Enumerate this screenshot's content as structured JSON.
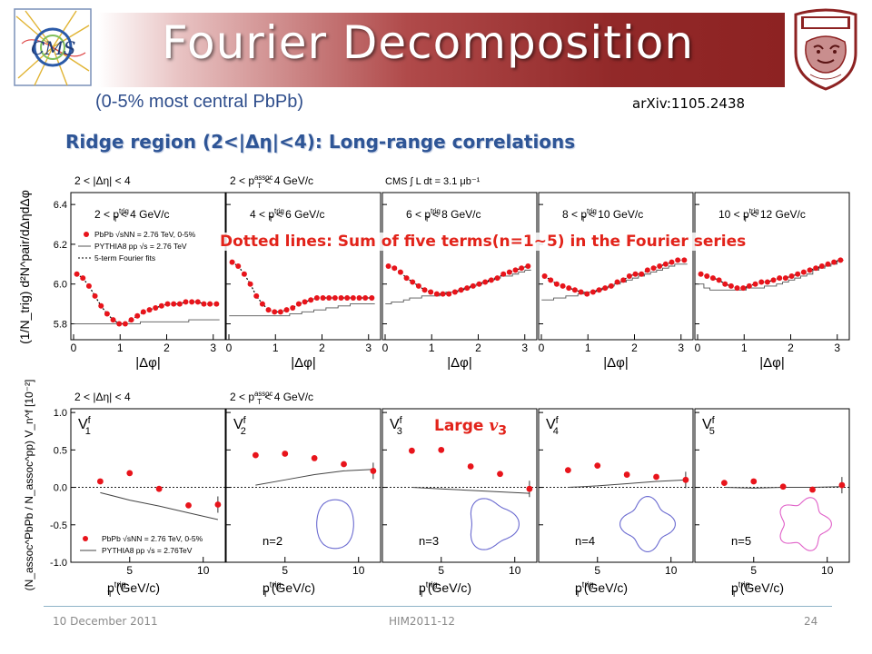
{
  "header": {
    "title": "Fourier Decomposition",
    "subtitle": "(0-5% most central PbPb)",
    "arxiv": "arXiv:1105.2438",
    "ridge_heading": "Ridge region (2<|Δη|<4): Long-range correlations",
    "logos": [
      "cms-logo",
      "korea-university-logo"
    ]
  },
  "annotations": {
    "dotted_note": "Dotted lines: Sum of five terms(n=1~5) in the Fourier series",
    "large_v3_prefix": "Large ",
    "large_v3_symbol": "v",
    "large_v3_sub": "3"
  },
  "footer": {
    "date": "10 December 2011",
    "conference": "HIM2011-12",
    "page": "24"
  },
  "colors": {
    "banner_dark": "#8d2222",
    "subtitle_blue": "#2f4e8c",
    "heading_blue": "#2e5596",
    "highlight_red": "#e2231a",
    "marker_red": "#e8141b"
  },
  "chart_data": [
    {
      "type": "line",
      "id": "top-row",
      "header_labels": [
        "2 < |Δη| < 4",
        "2 < p_T^assoc < 4 GeV/c",
        "CMS ∫ L dt = 3.1 μb⁻¹"
      ],
      "ylabel": "(1/N_trig) d²N^pair/dΔηdΔφ",
      "xlabel": "|Δφ|",
      "xlim": [
        0,
        3.2
      ],
      "ylim": [
        5.72,
        6.46
      ],
      "yticks": [
        5.8,
        6.0,
        6.2,
        6.4
      ],
      "xticks": [
        0,
        1,
        2,
        3
      ],
      "legend": [
        "PbPb √sNN = 2.76 TeV, 0-5%",
        "PYTHIA8 pp √s = 2.76 TeV",
        "5-term Fourier fits"
      ],
      "legend_position": "top-left of first panel",
      "panels": [
        {
          "label": "2 < p_T^trig < 4 GeV/c",
          "data_x": [
            0.07,
            0.2,
            0.33,
            0.46,
            0.59,
            0.72,
            0.85,
            0.98,
            1.11,
            1.24,
            1.37,
            1.5,
            1.63,
            1.76,
            1.89,
            2.02,
            2.15,
            2.28,
            2.41,
            2.54,
            2.67,
            2.8,
            2.93,
            3.07
          ],
          "data_y": [
            6.05,
            6.03,
            5.99,
            5.94,
            5.89,
            5.85,
            5.82,
            5.8,
            5.8,
            5.82,
            5.84,
            5.86,
            5.87,
            5.88,
            5.89,
            5.9,
            5.9,
            5.9,
            5.91,
            5.91,
            5.91,
            5.9,
            5.9,
            5.9
          ],
          "pythia_y": [
            5.8,
            5.8,
            5.8,
            5.8,
            5.8,
            5.8,
            5.8,
            5.8,
            5.8,
            5.8,
            5.8,
            5.81,
            5.81,
            5.81,
            5.81,
            5.81,
            5.81,
            5.81,
            5.81,
            5.82,
            5.82,
            5.82,
            5.82,
            5.82
          ]
        },
        {
          "label": "4 < p_T^trig < 6 GeV/c",
          "data_x": [
            0.07,
            0.2,
            0.33,
            0.46,
            0.59,
            0.72,
            0.85,
            0.98,
            1.11,
            1.24,
            1.37,
            1.5,
            1.63,
            1.76,
            1.89,
            2.02,
            2.15,
            2.28,
            2.41,
            2.54,
            2.67,
            2.8,
            2.93,
            3.07
          ],
          "data_y": [
            6.11,
            6.09,
            6.05,
            6.0,
            5.94,
            5.9,
            5.87,
            5.86,
            5.86,
            5.87,
            5.88,
            5.9,
            5.91,
            5.92,
            5.93,
            5.93,
            5.93,
            5.93,
            5.93,
            5.93,
            5.93,
            5.93,
            5.93,
            5.93
          ],
          "pythia_y": [
            5.84,
            5.84,
            5.84,
            5.84,
            5.84,
            5.84,
            5.84,
            5.84,
            5.84,
            5.84,
            5.85,
            5.85,
            5.86,
            5.86,
            5.87,
            5.87,
            5.88,
            5.88,
            5.89,
            5.89,
            5.9,
            5.9,
            5.9,
            5.9
          ]
        },
        {
          "label": "6 < p_T^trig < 8 GeV/c",
          "data_x": [
            0.07,
            0.2,
            0.33,
            0.46,
            0.59,
            0.72,
            0.85,
            0.98,
            1.11,
            1.24,
            1.37,
            1.5,
            1.63,
            1.76,
            1.89,
            2.02,
            2.15,
            2.28,
            2.41,
            2.54,
            2.67,
            2.8,
            2.93,
            3.07
          ],
          "data_y": [
            6.09,
            6.08,
            6.06,
            6.03,
            6.01,
            5.99,
            5.97,
            5.96,
            5.95,
            5.95,
            5.95,
            5.96,
            5.97,
            5.98,
            5.99,
            6.0,
            6.01,
            6.02,
            6.03,
            6.05,
            6.06,
            6.07,
            6.08,
            6.09
          ],
          "pythia_y": [
            5.9,
            5.91,
            5.91,
            5.92,
            5.93,
            5.93,
            5.94,
            5.94,
            5.94,
            5.95,
            5.96,
            5.96,
            5.97,
            5.98,
            5.99,
            6.0,
            6.01,
            6.02,
            6.03,
            6.04,
            6.04,
            6.05,
            6.06,
            6.07
          ]
        },
        {
          "label": "8 < p_T^trig < 10 GeV/c",
          "data_x": [
            0.07,
            0.2,
            0.33,
            0.46,
            0.59,
            0.72,
            0.85,
            0.98,
            1.11,
            1.24,
            1.37,
            1.5,
            1.63,
            1.76,
            1.89,
            2.02,
            2.15,
            2.28,
            2.41,
            2.54,
            2.67,
            2.8,
            2.93,
            3.07
          ],
          "data_y": [
            6.04,
            6.02,
            6.0,
            5.99,
            5.98,
            5.97,
            5.96,
            5.95,
            5.96,
            5.97,
            5.98,
            5.99,
            6.01,
            6.02,
            6.04,
            6.05,
            6.05,
            6.07,
            6.08,
            6.09,
            6.1,
            6.11,
            6.12,
            6.12
          ],
          "pythia_y": [
            5.92,
            5.92,
            5.93,
            5.93,
            5.94,
            5.94,
            5.95,
            5.96,
            5.96,
            5.97,
            5.98,
            5.99,
            6.0,
            6.01,
            6.02,
            6.03,
            6.04,
            6.05,
            6.06,
            6.07,
            6.08,
            6.09,
            6.1,
            6.1
          ]
        },
        {
          "label": "10 < p_T^trig < 12 GeV/c",
          "data_x": [
            0.07,
            0.2,
            0.33,
            0.46,
            0.59,
            0.72,
            0.85,
            0.98,
            1.11,
            1.24,
            1.37,
            1.5,
            1.63,
            1.76,
            1.89,
            2.02,
            2.15,
            2.28,
            2.41,
            2.54,
            2.67,
            2.8,
            2.93,
            3.07
          ],
          "data_y": [
            6.05,
            6.04,
            6.03,
            6.02,
            6.0,
            5.99,
            5.98,
            5.98,
            5.99,
            6.0,
            6.01,
            6.01,
            6.02,
            6.03,
            6.03,
            6.04,
            6.05,
            6.06,
            6.07,
            6.08,
            6.09,
            6.1,
            6.11,
            6.12
          ],
          "pythia_y": [
            6.0,
            5.98,
            5.97,
            5.97,
            5.97,
            5.97,
            5.97,
            5.97,
            5.98,
            5.98,
            5.98,
            5.99,
            5.99,
            6.0,
            6.01,
            6.02,
            6.03,
            6.04,
            6.05,
            6.07,
            6.08,
            6.09,
            6.1,
            6.12
          ]
        }
      ]
    },
    {
      "type": "scatter",
      "id": "bottom-row",
      "header_labels": [
        "2 < |Δη| < 4",
        "2 < p_T^assoc < 4 GeV/c"
      ],
      "ylabel": "(N_assoc^PbPb / N_assoc^pp) V_n^f [10⁻²]",
      "xlabel": "p_T^trig (GeV/c)",
      "xlim": [
        1,
        11.5
      ],
      "ylim": [
        -1.0,
        1.05
      ],
      "yticks": [
        -1.0,
        -0.5,
        0.0,
        0.5,
        1.0
      ],
      "xticks": [
        5,
        10
      ],
      "legend": [
        "PbPb √sNN = 2.76 TeV, 0-5%",
        "PYTHIA8 pp √s = 2.76TeV"
      ],
      "legend_position": "bottom-left of first panel",
      "x": [
        3,
        5,
        7,
        9,
        11
      ],
      "panels": [
        {
          "label": "V_1^f",
          "n_label": "",
          "data": [
            0.08,
            0.19,
            -0.02,
            -0.24,
            -0.23
          ],
          "pythia": [
            -0.07,
            -0.17,
            -0.25,
            -0.34,
            -0.43
          ],
          "shape_n": 0
        },
        {
          "label": "V_2^f",
          "n_label": "n=2",
          "data": [
            0.43,
            0.45,
            0.39,
            0.31,
            0.22
          ],
          "pythia": [
            0.03,
            0.1,
            0.17,
            0.22,
            0.24
          ],
          "shape_n": 2
        },
        {
          "label": "V_3^f",
          "n_label": "n=3",
          "data": [
            0.49,
            0.5,
            0.28,
            0.18,
            -0.02
          ],
          "pythia": [
            0.0,
            -0.02,
            -0.04,
            -0.06,
            -0.08
          ],
          "shape_n": 3
        },
        {
          "label": "V_4^f",
          "n_label": "n=4",
          "data": [
            0.23,
            0.29,
            0.17,
            0.14,
            0.1
          ],
          "pythia": [
            0.0,
            0.02,
            0.05,
            0.08,
            0.1
          ],
          "shape_n": 4
        },
        {
          "label": "V_5^f",
          "n_label": "n=5",
          "data": [
            0.06,
            0.08,
            0.01,
            -0.03,
            0.03
          ],
          "pythia": [
            0.0,
            -0.01,
            0.0,
            0.0,
            0.01
          ],
          "shape_n": 5
        }
      ]
    }
  ]
}
